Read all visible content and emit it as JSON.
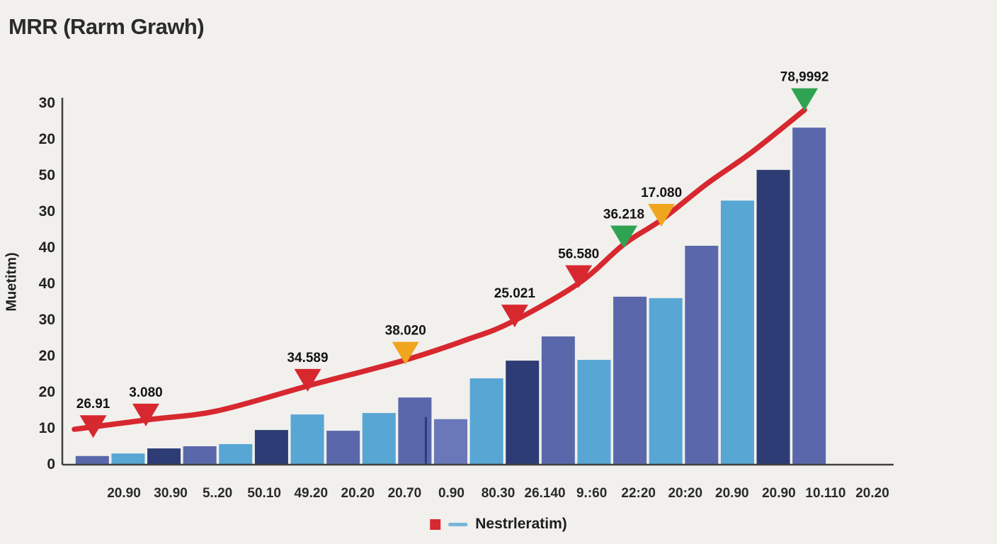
{
  "chart_data": {
    "type": "bar",
    "title": "MRR (Rarm Grawh)",
    "ylabel": "Muetitm)",
    "xlabel": "",
    "legend_label": "Nestrleratim)",
    "legend_position": "bottom-center",
    "grid": false,
    "ylim": [
      0,
      100
    ],
    "y_ticks": [
      "30",
      "20",
      "50",
      "30",
      "40",
      "40",
      "30",
      "20",
      "20",
      "10",
      "0"
    ],
    "x_ticks": [
      "20.90",
      "30.90",
      "5..20",
      "50.10",
      "49.20",
      "20.20",
      "20.70",
      "0.90",
      "80.30",
      "26.140",
      "9.:60",
      "22:20",
      "20:20",
      "20.90",
      "20.90",
      "10.110",
      "20.20"
    ],
    "palette": {
      "slate": "#5a68ab",
      "slateLight": "#6a77b8",
      "lightblue": "#57a6d4",
      "navy": "#2d3c74",
      "red": "#d7282f",
      "orange": "#f0a51f",
      "green": "#2fa352",
      "axis": "#3f3f3f"
    },
    "bars": {
      "values": [
        2.2,
        2.9,
        4.3,
        4.9,
        5.5,
        9.4,
        13.7,
        9.2,
        14.1,
        18.4,
        12.4,
        23.7,
        28.6,
        35.3,
        28.8,
        46.3,
        45.9,
        60.4,
        72.9,
        81.4,
        93.1
      ],
      "colors": [
        "slate",
        "lightblue",
        "navy",
        "slate",
        "lightblue",
        "navy",
        "lightblue",
        "slate",
        "lightblue",
        "slate",
        "slateLight",
        "lightblue",
        "navy",
        "slate",
        "lightblue",
        "slate",
        "lightblue",
        "slate",
        "lightblue",
        "navy",
        "slate"
      ]
    },
    "trend_line": {
      "color": "red",
      "points": [
        [
          0.0,
          9.6
        ],
        [
          0.1,
          12.3
        ],
        [
          0.19,
          14.7
        ],
        [
          0.31,
          21.6
        ],
        [
          0.44,
          28.8
        ],
        [
          0.52,
          34.3
        ],
        [
          0.58,
          39.2
        ],
        [
          0.67,
          50.0
        ],
        [
          0.73,
          60.8
        ],
        [
          0.78,
          67.6
        ],
        [
          0.84,
          77.5
        ],
        [
          0.9,
          86.3
        ],
        [
          0.97,
          98.0
        ]
      ]
    },
    "markers": [
      {
        "x": 0.025,
        "value": 8.0,
        "color": "red",
        "label": "26.91"
      },
      {
        "x": 0.095,
        "value": 11.2,
        "color": "red",
        "label": "3.080"
      },
      {
        "x": 0.31,
        "value": 20.8,
        "color": "red",
        "label": "34.589"
      },
      {
        "x": 0.44,
        "value": 28.3,
        "color": "orange",
        "label": "38.020"
      },
      {
        "x": 0.585,
        "value": 38.6,
        "color": "red",
        "label": "25.021"
      },
      {
        "x": 0.67,
        "value": 49.5,
        "color": "red",
        "label": "56.580"
      },
      {
        "x": 0.73,
        "value": 60.5,
        "color": "green",
        "label": "36.218"
      },
      {
        "x": 0.78,
        "value": 66.5,
        "color": "orange",
        "label": "17.080"
      },
      {
        "x": 0.97,
        "value": 98.5,
        "color": "green",
        "label": "78,9992"
      }
    ],
    "divider": {
      "x": 0.467,
      "value": 13
    }
  }
}
